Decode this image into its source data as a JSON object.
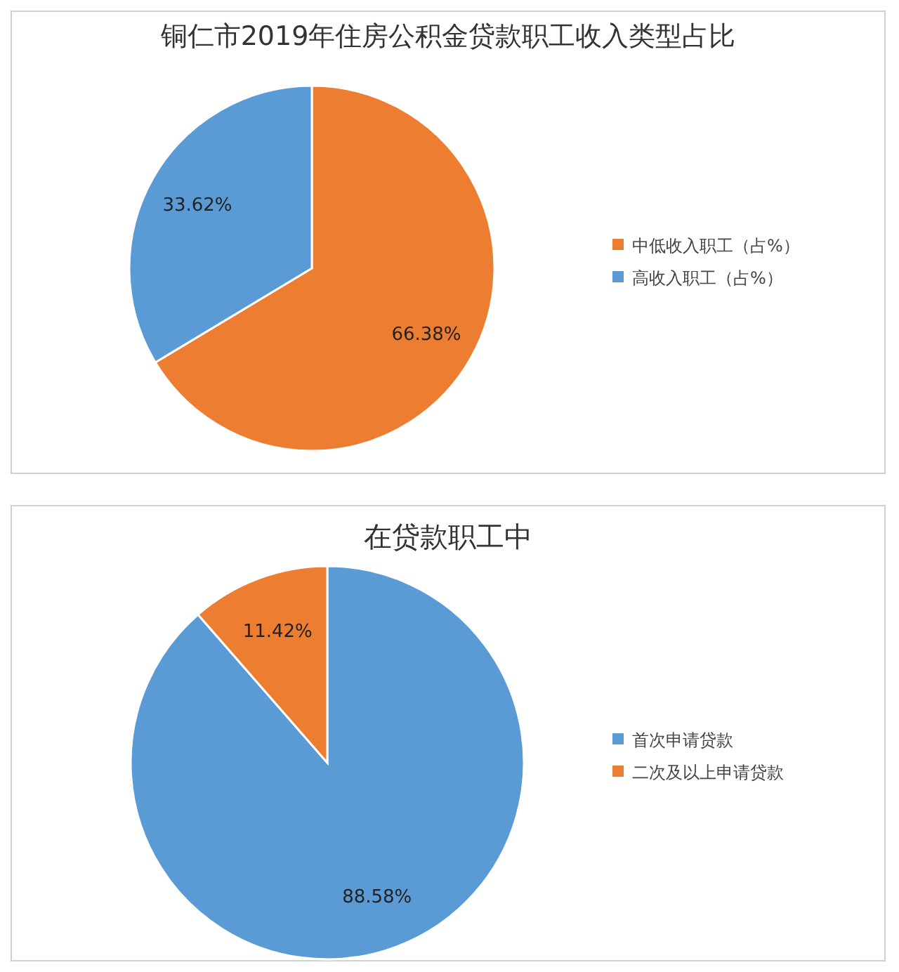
{
  "chart_data": [
    {
      "type": "pie",
      "title": "铜仁市2019年住房公积金贷款职工收入类型占比",
      "categories": [
        "中低收入职工（占%）",
        "高收入职工（占%）"
      ],
      "values": [
        66.38,
        33.62
      ],
      "colors": [
        "#ed7d31",
        "#5b9bd5"
      ],
      "value_labels": [
        "66.38%",
        "33.62%"
      ],
      "legend": "right"
    },
    {
      "type": "pie",
      "title": "在贷款职工中",
      "categories": [
        "首次申请贷款",
        "二次及以上申请贷款"
      ],
      "values": [
        88.58,
        11.42
      ],
      "colors": [
        "#5b9bd5",
        "#ed7d31"
      ],
      "value_labels": [
        "88.58%",
        "11.42%"
      ],
      "legend": "right"
    }
  ]
}
